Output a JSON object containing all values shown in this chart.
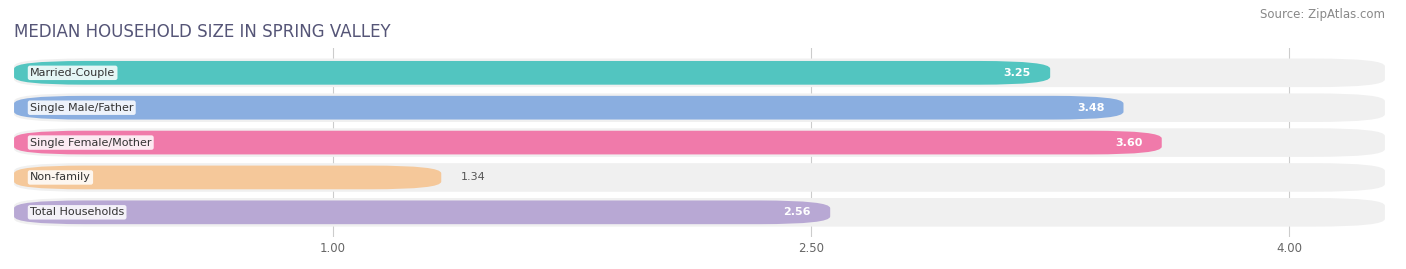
{
  "title": "MEDIAN HOUSEHOLD SIZE IN SPRING VALLEY",
  "source": "Source: ZipAtlas.com",
  "categories": [
    "Married-Couple",
    "Single Male/Father",
    "Single Female/Mother",
    "Non-family",
    "Total Households"
  ],
  "values": [
    3.25,
    3.48,
    3.6,
    1.34,
    2.56
  ],
  "bar_colors": [
    "#52c5c0",
    "#8aaee0",
    "#f07aaa",
    "#f5c89a",
    "#b8a8d4"
  ],
  "bar_edge_colors": [
    "#52c5c0",
    "#8aaee0",
    "#f07aaa",
    "#f5c89a",
    "#b8a8d4"
  ],
  "value_text_colors": [
    "#ffffff",
    "#ffffff",
    "#ffffff",
    "#555555",
    "#555555"
  ],
  "xlim": [
    0.0,
    4.3
  ],
  "xmin": 0.0,
  "xmax": 4.3,
  "xticks": [
    1.0,
    2.5,
    4.0
  ],
  "xtick_labels": [
    "1.00",
    "2.50",
    "4.00"
  ],
  "background_color": "#ffffff",
  "bar_bg_color": "#f0f0f0",
  "title_fontsize": 12,
  "source_fontsize": 8.5,
  "label_fontsize": 8,
  "value_fontsize": 8
}
